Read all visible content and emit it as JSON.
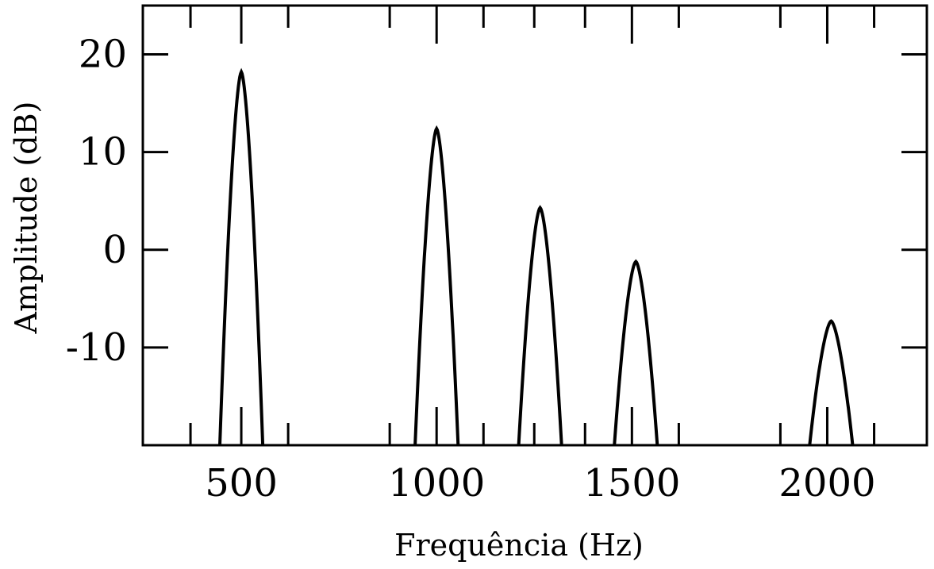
{
  "chart_data": {
    "type": "line",
    "title": "",
    "xlabel": "Frequência (Hz)",
    "ylabel": "Amplitude (dB)",
    "xlim": [
      248,
      2255
    ],
    "ylim": [
      -20,
      25
    ],
    "x_ticks": [
      500,
      1000,
      1500,
      2000
    ],
    "x_tick_labels": [
      "500",
      "1000",
      "1500",
      "2000"
    ],
    "y_ticks": [
      20,
      10,
      0,
      -10
    ],
    "y_tick_labels": [
      "20",
      "10",
      "0",
      "-10"
    ],
    "minor_x_ticks": [
      370,
      620,
      880,
      1120,
      1250,
      1380,
      1620,
      1880,
      2120
    ],
    "grid": false,
    "series": [
      {
        "peaks": [
          {
            "x": 500,
            "y": 18.2
          },
          {
            "x": 1000,
            "y": 12.4
          },
          {
            "x": 1265,
            "y": 4.3
          },
          {
            "x": 1510,
            "y": -1.2
          },
          {
            "x": 2010,
            "y": -7.3
          }
        ],
        "half_width_at_base": 55,
        "color": "#000000"
      }
    ]
  }
}
